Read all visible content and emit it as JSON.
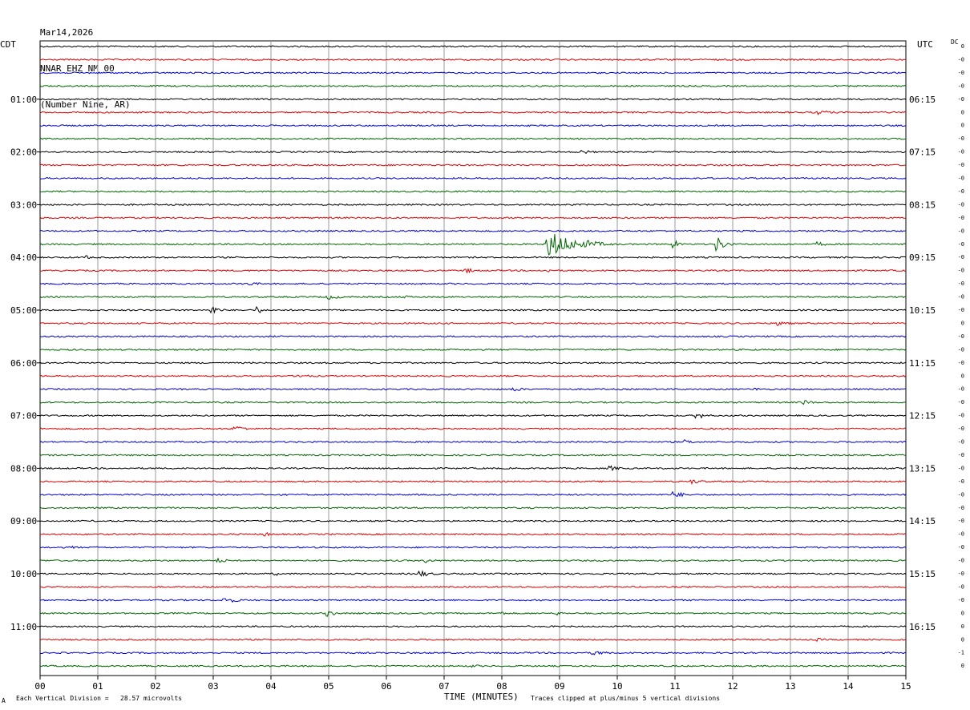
{
  "header": {
    "date": "Mar14,2026",
    "station": "NNAR EHZ NM 00",
    "location": "(Number Nine, AR)"
  },
  "left_tz": "CDT",
  "right_tz": "UTC",
  "dc_label": "DC",
  "footer": {
    "scale_note": "Each Vertical Division =   28.57 microvolts",
    "clip_note": "Traces clipped at plus/minus 5 vertical divisions",
    "corner_mark": "A"
  },
  "chart_data": {
    "type": "line",
    "title": "",
    "xlabel": "TIME (MINUTES)",
    "ylabel": "",
    "xlim": [
      0,
      15
    ],
    "x_ticks": [
      "00",
      "01",
      "02",
      "03",
      "04",
      "05",
      "06",
      "07",
      "08",
      "09",
      "10",
      "11",
      "12",
      "13",
      "14",
      "15"
    ],
    "grid": "vertical lines at each minute",
    "trace_minutes": 15,
    "trace_count": 48,
    "trace_colors": [
      "#000000",
      "#dd0000",
      "#0000cc",
      "#006600"
    ],
    "left_time_labels": [
      "01:00",
      "02:00",
      "03:00",
      "04:00",
      "05:00",
      "06:00",
      "07:00",
      "08:00",
      "09:00",
      "10:00",
      "11:00"
    ],
    "right_time_labels": [
      "06:15",
      "07:15",
      "08:15",
      "09:15",
      "10:15",
      "11:15",
      "12:15",
      "13:15",
      "14:15",
      "15:15",
      "16:15"
    ],
    "dc_offsets": [
      "0",
      "-0",
      "-0",
      "-0",
      "-0",
      "0",
      "0",
      "-0",
      "-0",
      "-0",
      "-0",
      "-0",
      "-0",
      "-0",
      "-0",
      "-0",
      "-0",
      "-0",
      "-0",
      "-0",
      "-0",
      "0",
      "-0",
      "-0",
      "-0",
      "0",
      "-0",
      "-0",
      "-0",
      "-0",
      "-0",
      "-0",
      "-0",
      "-0",
      "-0",
      "-0",
      "-0",
      "-0",
      "-0",
      "-0",
      "-0",
      "-0",
      "-0",
      "0",
      "0",
      "0",
      "-1",
      "0"
    ],
    "events": [
      {
        "trace": 8,
        "minute": 9.4,
        "amplitude": 3,
        "duration": 0.6
      },
      {
        "trace": 5,
        "minute": 13.5,
        "amplitude": 3,
        "duration": 0.8
      },
      {
        "trace": 15,
        "minute": 8.8,
        "amplitude": 18,
        "duration": 1.2
      },
      {
        "trace": 15,
        "minute": 9.5,
        "amplitude": 5,
        "duration": 0.9
      },
      {
        "trace": 15,
        "minute": 11.0,
        "amplitude": 5,
        "duration": 0.3
      },
      {
        "trace": 15,
        "minute": 11.75,
        "amplitude": 9,
        "duration": 0.4
      },
      {
        "trace": 15,
        "minute": 13.5,
        "amplitude": 3,
        "duration": 0.4
      },
      {
        "trace": 16,
        "minute": 0.8,
        "amplitude": 2.5,
        "duration": 0.4
      },
      {
        "trace": 17,
        "minute": 7.4,
        "amplitude": 3,
        "duration": 0.5
      },
      {
        "trace": 17,
        "minute": 8.8,
        "amplitude": 2.5,
        "duration": 0.3
      },
      {
        "trace": 18,
        "minute": 3.6,
        "amplitude": 3,
        "duration": 0.6
      },
      {
        "trace": 19,
        "minute": 5.0,
        "amplitude": 3,
        "duration": 0.8
      },
      {
        "trace": 19,
        "minute": 6.3,
        "amplitude": 2,
        "duration": 0.8
      },
      {
        "trace": 20,
        "minute": 3.0,
        "amplitude": 5,
        "duration": 0.4
      },
      {
        "trace": 20,
        "minute": 3.8,
        "amplitude": 5,
        "duration": 0.1
      },
      {
        "trace": 21,
        "minute": 12.8,
        "amplitude": 4,
        "duration": 0.5
      },
      {
        "trace": 25,
        "minute": 4.5,
        "amplitude": 3,
        "duration": 0.6
      },
      {
        "trace": 26,
        "minute": 8.2,
        "amplitude": 3,
        "duration": 0.6
      },
      {
        "trace": 26,
        "minute": 12.4,
        "amplitude": 2,
        "duration": 0.4
      },
      {
        "trace": 27,
        "minute": 13.2,
        "amplitude": 4,
        "duration": 0.5
      },
      {
        "trace": 28,
        "minute": 11.4,
        "amplitude": 4,
        "duration": 0.5
      },
      {
        "trace": 29,
        "minute": 3.4,
        "amplitude": 4,
        "duration": 0.6
      },
      {
        "trace": 30,
        "minute": 11.2,
        "amplitude": 3,
        "duration": 0.5
      },
      {
        "trace": 32,
        "minute": 9.9,
        "amplitude": 3,
        "duration": 0.5
      },
      {
        "trace": 33,
        "minute": 11.3,
        "amplitude": 3,
        "duration": 0.7
      },
      {
        "trace": 34,
        "minute": 11.0,
        "amplitude": 4,
        "duration": 0.6
      },
      {
        "trace": 37,
        "minute": 3.9,
        "amplitude": 3,
        "duration": 0.4
      },
      {
        "trace": 38,
        "minute": 0.6,
        "amplitude": 2,
        "duration": 0.3
      },
      {
        "trace": 38,
        "minute": 13.8,
        "amplitude": 2,
        "duration": 0.5
      },
      {
        "trace": 39,
        "minute": 3.1,
        "amplitude": 3,
        "duration": 0.5
      },
      {
        "trace": 39,
        "minute": 6.7,
        "amplitude": 3,
        "duration": 0.5
      },
      {
        "trace": 40,
        "minute": 6.6,
        "amplitude": 4,
        "duration": 0.6
      },
      {
        "trace": 40,
        "minute": 4.1,
        "amplitude": 2,
        "duration": 0.2
      },
      {
        "trace": 42,
        "minute": 3.2,
        "amplitude": 4,
        "duration": 0.8
      },
      {
        "trace": 43,
        "minute": 5.0,
        "amplitude": 4,
        "duration": 0.4
      },
      {
        "trace": 43,
        "minute": 8.0,
        "amplitude": 3,
        "duration": 0.2
      },
      {
        "trace": 43,
        "minute": 9.0,
        "amplitude": 3,
        "duration": 0.2
      },
      {
        "trace": 45,
        "minute": 13.5,
        "amplitude": 2,
        "duration": 0.5
      },
      {
        "trace": 46,
        "minute": 9.6,
        "amplitude": 3,
        "duration": 0.8
      },
      {
        "trace": 47,
        "minute": 7.5,
        "amplitude": 2,
        "duration": 0.6
      }
    ]
  }
}
